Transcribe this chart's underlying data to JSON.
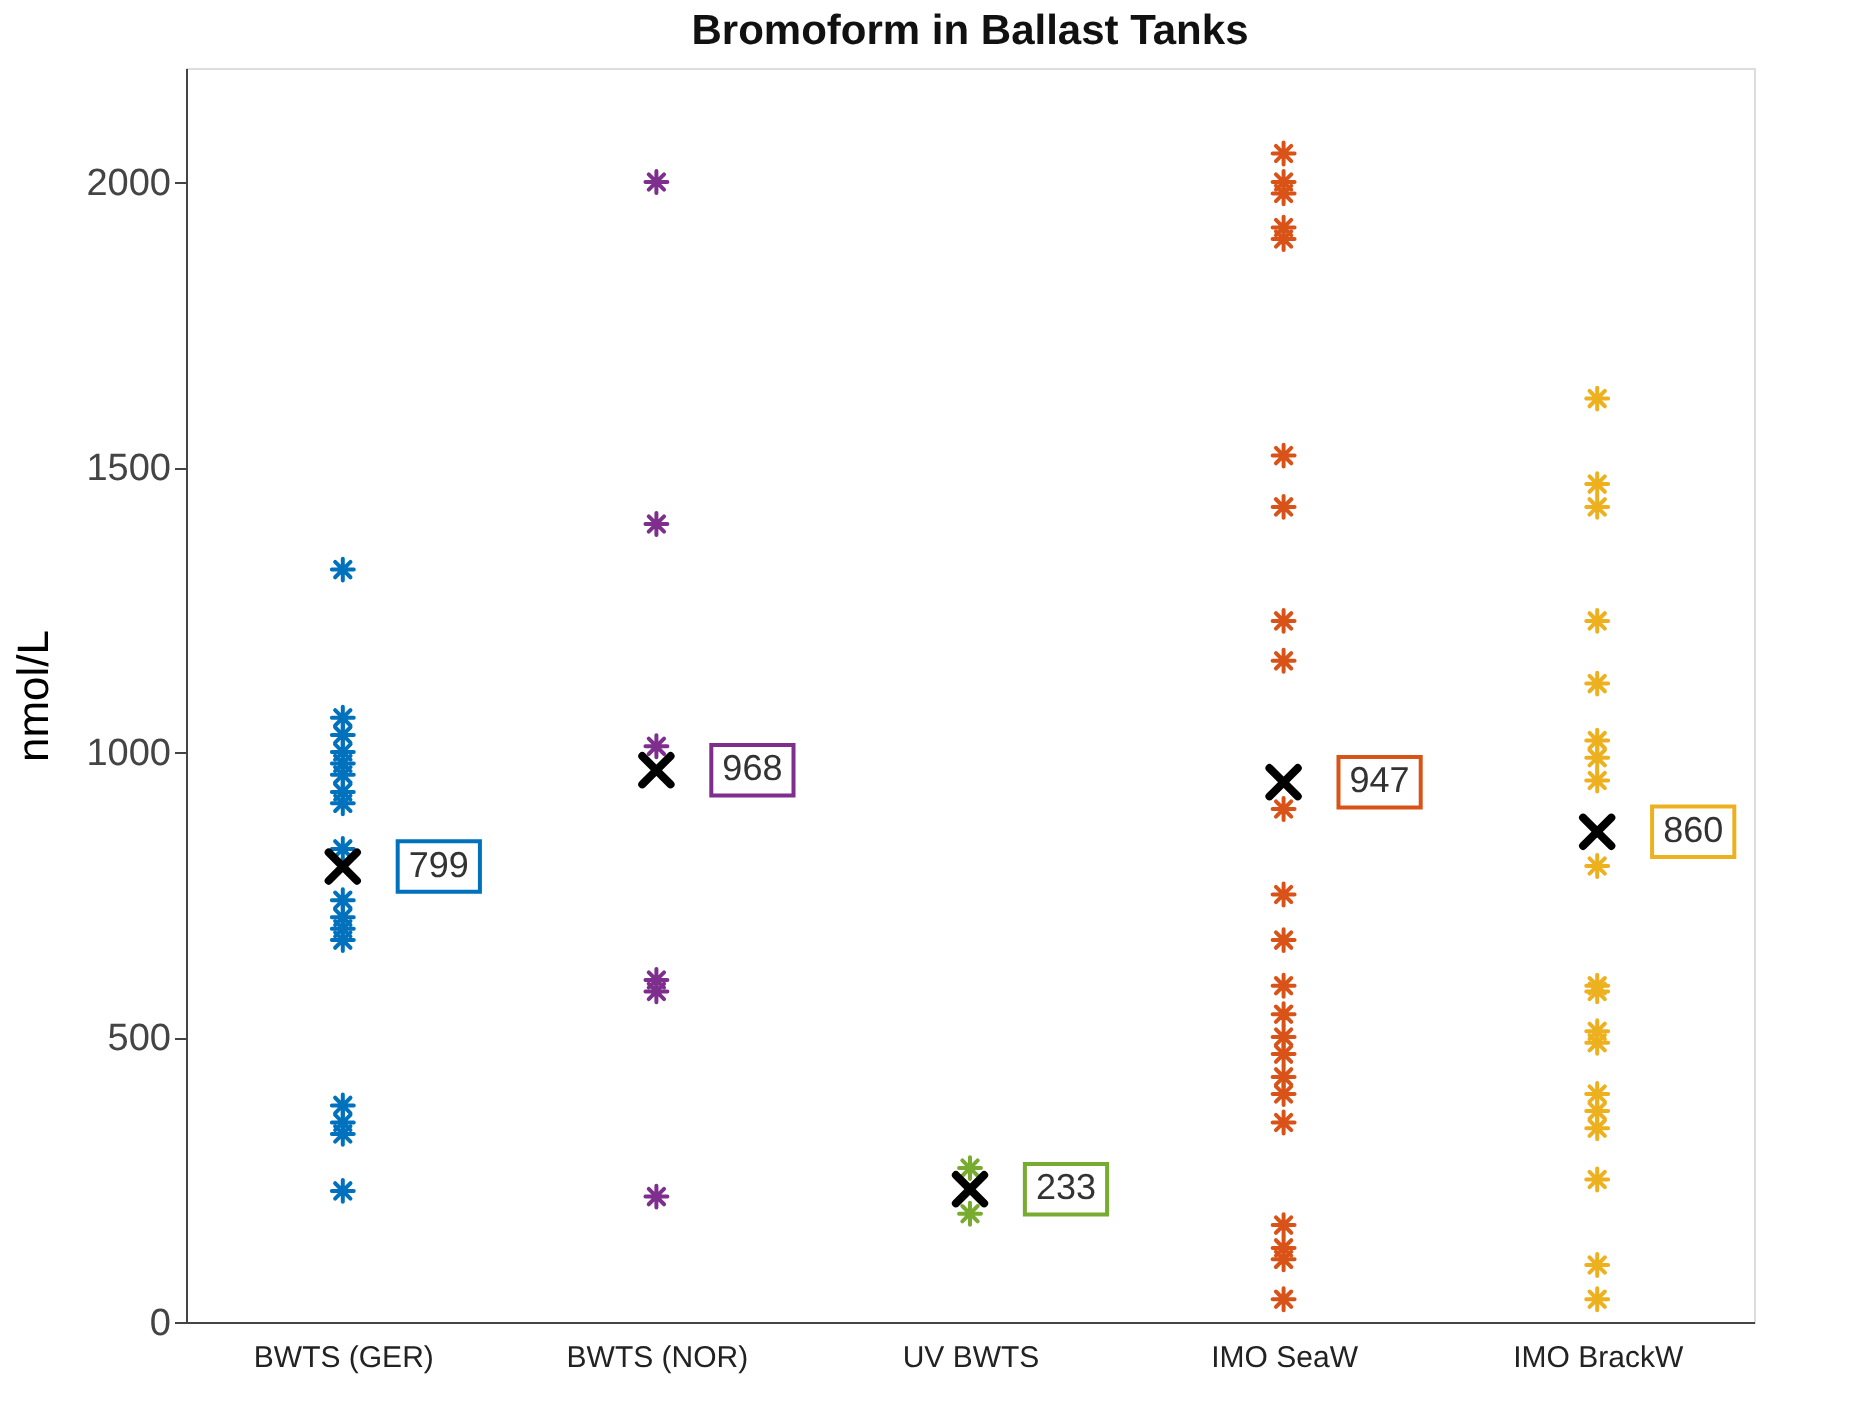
{
  "chart_data": {
    "type": "scatter",
    "title": "Bromoform in Ballast Tanks",
    "ylabel": "nmol/L",
    "categories": [
      "BWTS (GER)",
      "BWTS (NOR)",
      "UV BWTS",
      "IMO SeaW",
      "IMO BrackW"
    ],
    "ylim": [
      0,
      2200
    ],
    "yticks": [
      0,
      500,
      1000,
      1500,
      2000
    ],
    "grid": false,
    "series": [
      {
        "color": "#0072bd",
        "x": [
          "BWTS (GER)",
          "BWTS (GER)",
          "BWTS (GER)",
          "BWTS (GER)",
          "BWTS (GER)",
          "BWTS (GER)",
          "BWTS (GER)",
          "BWTS (GER)",
          "BWTS (GER)",
          "BWTS (GER)",
          "BWTS (GER)",
          "BWTS (GER)",
          "BWTS (GER)",
          "BWTS (GER)",
          "BWTS (GER)",
          "BWTS (GER)",
          "BWTS (GER)",
          "BWTS (GER)"
        ],
        "values": [
          1320,
          1060,
          1030,
          1000,
          980,
          960,
          930,
          910,
          830,
          null,
          740,
          710,
          690,
          670,
          380,
          350,
          330,
          230
        ]
      },
      {
        "color": "#7e2f8e",
        "x": [
          "BWTS (NOR)",
          "BWTS (NOR)",
          "BWTS (NOR)",
          "BWTS (NOR)",
          "BWTS (NOR)",
          "BWTS (NOR)"
        ],
        "values": [
          2000,
          1400,
          1010,
          600,
          580,
          220
        ]
      },
      {
        "color": "#77ac30",
        "x": [
          "UV BWTS",
          "UV BWTS",
          "UV BWTS",
          "UV BWTS",
          "UV BWTS"
        ],
        "values": [
          270,
          null,
          null,
          null,
          190
        ]
      },
      {
        "color": "#d95319",
        "x": [
          "IMO SeaW",
          "IMO SeaW",
          "IMO SeaW",
          "IMO SeaW",
          "IMO SeaW",
          "IMO SeaW",
          "IMO SeaW",
          "IMO SeaW",
          "IMO SeaW",
          "IMO SeaW",
          "IMO SeaW",
          "IMO SeaW",
          "IMO SeaW",
          "IMO SeaW",
          "IMO SeaW",
          "IMO SeaW",
          "IMO SeaW",
          "IMO SeaW",
          "IMO SeaW",
          "IMO SeaW",
          "IMO SeaW",
          "IMO SeaW",
          "IMO SeaW"
        ],
        "values": [
          2050,
          2000,
          1980,
          1920,
          1900,
          1520,
          1430,
          1230,
          1160,
          900,
          750,
          670,
          590,
          540,
          500,
          470,
          430,
          400,
          350,
          170,
          130,
          110,
          40
        ]
      },
      {
        "color": "#edb120",
        "x": [
          "IMO BrackW",
          "IMO BrackW",
          "IMO BrackW",
          "IMO BrackW",
          "IMO BrackW",
          "IMO BrackW",
          "IMO BrackW",
          "IMO BrackW",
          "IMO BrackW",
          "IMO BrackW",
          "IMO BrackW",
          "IMO BrackW",
          "IMO BrackW",
          "IMO BrackW",
          "IMO BrackW",
          "IMO BrackW",
          "IMO BrackW",
          "IMO BrackW",
          "IMO BrackW"
        ],
        "values": [
          1620,
          1470,
          1430,
          1230,
          1120,
          1020,
          990,
          950,
          800,
          590,
          580,
          510,
          490,
          400,
          370,
          340,
          250,
          100,
          40
        ]
      },
      {
        "color": "#000000",
        "marker": "cross",
        "data_labels": true,
        "x": [
          "BWTS (GER)",
          "BWTS (NOR)",
          "UV BWTS",
          "IMO SeaW",
          "IMO BrackW"
        ],
        "values": [
          799,
          968,
          233,
          947,
          860
        ]
      }
    ]
  }
}
